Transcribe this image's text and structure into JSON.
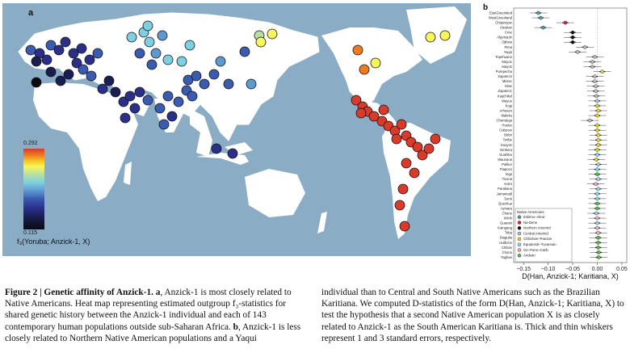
{
  "panel_a": {
    "label": "a",
    "colorbar": {
      "max": "0.292",
      "min": "0.115",
      "title": "f₃(Yoruba; Anzick-1, X)"
    }
  },
  "panel_b": {
    "label": "b",
    "xlabel": "D(Han, Anzick-1; Karitiana, X)",
    "ticks": [
      "−0.15",
      "−0.10",
      "−0.05",
      "0.00",
      "0.05"
    ],
    "legend_title": "Native Americans:",
    "legend_items": [
      {
        "label": "Eskimo–Aleut",
        "color": "#4aa0a8"
      },
      {
        "label": "Na-Dene",
        "color": "#d7263d"
      },
      {
        "label": "Northern Amerind",
        "color": "#111111"
      },
      {
        "label": "Central Amerind",
        "color": "#b9b9b9"
      },
      {
        "label": "Chibchan–Paezan",
        "color": "#e6cf2a"
      },
      {
        "label": "Equatorial–Tucanoan",
        "color": "#8fd3e6"
      },
      {
        "label": "Ge–Pano–Carib",
        "color": "#f2a7c0"
      },
      {
        "label": "Andean",
        "color": "#58b94a"
      }
    ]
  },
  "chart_data": {
    "type": "scatter",
    "title": "",
    "xlabel": "D(Han, Anzick-1; Karitiana, X)",
    "ylabel": "",
    "xlim": [
      -0.17,
      0.06
    ],
    "populations": [
      {
        "name": "EastGreenland",
        "d": -0.12,
        "group": "Eskimo–Aleut"
      },
      {
        "name": "WestGreenland",
        "d": -0.115,
        "group": "Eskimo–Aleut"
      },
      {
        "name": "Chipewyan",
        "d": -0.065,
        "group": "Na-Dene"
      },
      {
        "name": "Aleutian",
        "d": -0.11,
        "group": "Eskimo–Aleut"
      },
      {
        "name": "Cree",
        "d": -0.05,
        "group": "Northern Amerind"
      },
      {
        "name": "Algonquin",
        "d": -0.05,
        "group": "Northern Amerind"
      },
      {
        "name": "Ojibwa",
        "d": -0.05,
        "group": "Northern Amerind"
      },
      {
        "name": "Pima",
        "d": -0.025,
        "group": "Central Amerind"
      },
      {
        "name": "Yaqui",
        "d": -0.04,
        "group": "Central Amerind"
      },
      {
        "name": "Tepehuano",
        "d": -0.005,
        "group": "Central Amerind"
      },
      {
        "name": "Mayo1",
        "d": -0.01,
        "group": "Central Amerind"
      },
      {
        "name": "Mayo2",
        "d": -0.01,
        "group": "Central Amerind"
      },
      {
        "name": "Purepecha",
        "d": 0.01,
        "group": "Chibchan–Paezan"
      },
      {
        "name": "Zapotec2",
        "d": -0.005,
        "group": "Central Amerind"
      },
      {
        "name": "Mixtec",
        "d": -0.005,
        "group": "Central Amerind"
      },
      {
        "name": "Mixe",
        "d": -0.003,
        "group": "Central Amerind"
      },
      {
        "name": "Zapotec1",
        "d": -0.003,
        "group": "Central Amerind"
      },
      {
        "name": "Kaqchikel",
        "d": -0.002,
        "group": "Central Amerind"
      },
      {
        "name": "Wayuu",
        "d": 0.0,
        "group": "Equatorial–Tucanoan"
      },
      {
        "name": "Kogi",
        "d": 0.0,
        "group": "Chibchan–Paezan"
      },
      {
        "name": "Arhuaco",
        "d": 0.002,
        "group": "Chibchan–Paezan"
      },
      {
        "name": "Maleku",
        "d": 0.0,
        "group": "Chibchan–Paezan"
      },
      {
        "name": "Chorotega",
        "d": -0.015,
        "group": "Central Amerind"
      },
      {
        "name": "Huetar",
        "d": 0.0,
        "group": "Chibchan–Paezan"
      },
      {
        "name": "Cabecar",
        "d": 0.0,
        "group": "Chibchan–Paezan"
      },
      {
        "name": "Bribri",
        "d": 0.002,
        "group": "Chibchan–Paezan"
      },
      {
        "name": "Teribe",
        "d": 0.002,
        "group": "Chibchan–Paezan"
      },
      {
        "name": "Guaymi",
        "d": 0.002,
        "group": "Chibchan–Paezan"
      },
      {
        "name": "Embera",
        "d": 0.0,
        "group": "Chibchan–Paezan"
      },
      {
        "name": "Guahibo",
        "d": 0.0,
        "group": "Equatorial–Tucanoan"
      },
      {
        "name": "Waunana",
        "d": -0.002,
        "group": "Chibchan–Paezan"
      },
      {
        "name": "Palikur",
        "d": 0.002,
        "group": "Equatorial–Tucanoan"
      },
      {
        "name": "Piapoco",
        "d": 0.0,
        "group": "Equatorial–Tucanoan"
      },
      {
        "name": "Inga",
        "d": 0.0,
        "group": "Andean"
      },
      {
        "name": "Ticuna",
        "d": 0.002,
        "group": "Equatorial–Tucanoan"
      },
      {
        "name": "Arara",
        "d": -0.003,
        "group": "Ge–Pano–Carib"
      },
      {
        "name": "Parakana",
        "d": 0.002,
        "group": "Equatorial–Tucanoan"
      },
      {
        "name": "Jamamadi",
        "d": 0.0,
        "group": "Equatorial–Tucanoan"
      },
      {
        "name": "Surui",
        "d": 0.0,
        "group": "Equatorial–Tucanoan"
      },
      {
        "name": "Quechua",
        "d": 0.0,
        "group": "Andean"
      },
      {
        "name": "Aymara",
        "d": 0.0,
        "group": "Andean"
      },
      {
        "name": "Chane",
        "d": -0.002,
        "group": "Equatorial–Tucanoan"
      },
      {
        "name": "Wichi",
        "d": 0.0,
        "group": "Ge–Pano–Carib"
      },
      {
        "name": "Guarani",
        "d": 0.0,
        "group": "Equatorial–Tucanoan"
      },
      {
        "name": "Kaingang",
        "d": 0.0,
        "group": "Ge–Pano–Carib"
      },
      {
        "name": "Toba",
        "d": 0.002,
        "group": "Ge–Pano–Carib"
      },
      {
        "name": "Diaguita",
        "d": 0.002,
        "group": "Andean"
      },
      {
        "name": "Huilliche",
        "d": 0.002,
        "group": "Andean"
      },
      {
        "name": "Chilote",
        "d": 0.002,
        "group": "Andean"
      },
      {
        "name": "Chono",
        "d": 0.003,
        "group": "Andean"
      },
      {
        "name": "Yaghan",
        "d": 0.003,
        "group": "Andean"
      }
    ]
  },
  "caption": {
    "left_bold": "Figure 2 | Genetic affinity of Anzick-1.",
    "left_a_label": " a",
    "left_text": ", Anzick-1 is most closely related to Native Americans. Heat map representing estimated outgroup f₃-statistics for shared genetic history between the Anzick-1 individual and each of 143 contemporary human populations outside sub-Saharan Africa.",
    "left_b_label": " b",
    "left_text2": ", Anzick-1 is less closely related to Northern Native American populations and a Yaqui",
    "right_text": "individual than to Central and South Native Americans such as the Brazilian Karitiana. We computed D-statistics of the form D(Han, Anzick-1; Karitiana, X) to test the hypothesis that a second Native American population X is as closely related to Anzick-1 as the South American Karitiana is. Thick and thin whiskers represent 1 and 3 standard errors, respectively."
  }
}
